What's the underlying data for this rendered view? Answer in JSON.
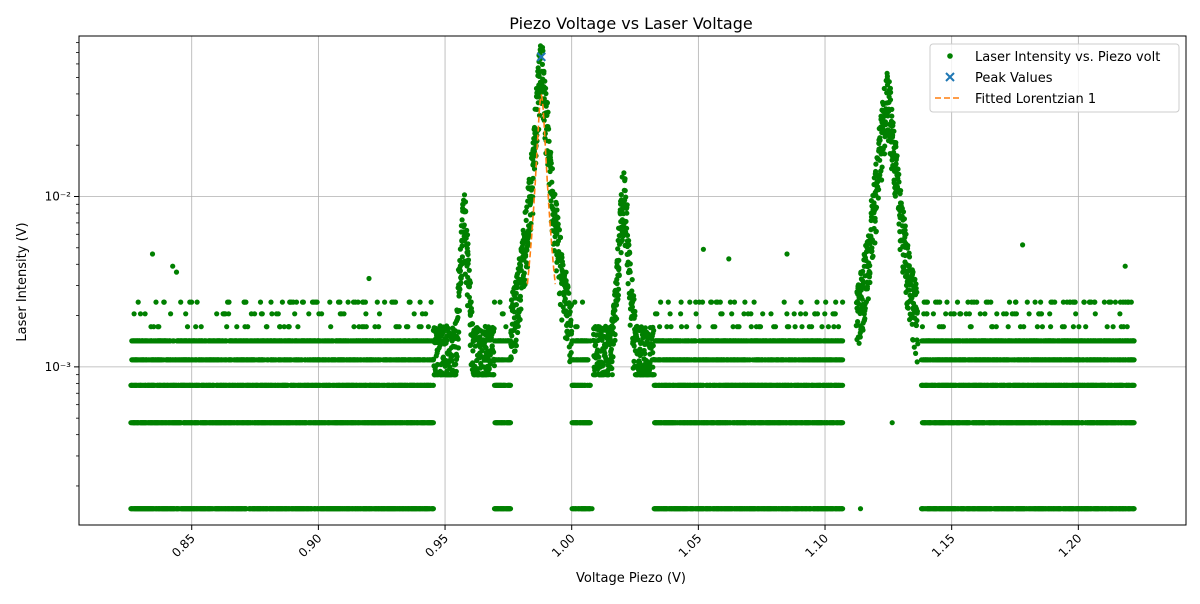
{
  "colors": {
    "data_points": "#008000",
    "peak_marker": "#1f77b4",
    "fit_line": "#ff7f0e",
    "grid": "#b0b0b0",
    "axes": "#000000"
  },
  "chart_data": {
    "type": "scatter",
    "title": "Piezo Voltage vs Laser Voltage",
    "xlabel": "Voltage Piezo (V)",
    "ylabel": "Laser Intensity (V)",
    "xlim": [
      0.8055,
      1.2425
    ],
    "ylim": [
      0.000118,
      0.0875
    ],
    "y_scale": "log",
    "grid": true,
    "legend_position": "top-right",
    "x_ticks": [
      0.85,
      0.9,
      0.95,
      1.0,
      1.05,
      1.1,
      1.15,
      1.2
    ],
    "x_tick_labels": [
      "0.85",
      "0.90",
      "0.95",
      "1.00",
      "1.05",
      "1.10",
      "1.15",
      "1.20"
    ],
    "y_ticks": [
      0.001,
      0.01
    ],
    "y_tick_labels": [
      "10⁻³",
      "10⁻²"
    ],
    "legend": [
      {
        "label": "Laser Intensity vs. Piezo volt",
        "marker": "dot",
        "color": "#008000"
      },
      {
        "label": "Peak Values",
        "marker": "x",
        "color": "#1f77b4"
      },
      {
        "label": "Fitted Lorentzian 1",
        "marker": "dashed-line",
        "color": "#ff7f0e"
      }
    ],
    "series": [
      {
        "name": "Laser Intensity vs. Piezo volt",
        "kind": "scatter",
        "x_range": [
          0.826,
          1.222
        ],
        "quantized_levels": [
          0.000147,
          0.00047,
          0.00078,
          0.0011,
          0.00142,
          0.00172,
          0.00205,
          0.0024,
          0.0027,
          0.003
        ],
        "peaks": [
          {
            "x": 0.9575,
            "y": 0.0072
          },
          {
            "x": 0.988,
            "y": 0.055
          },
          {
            "x": 1.0205,
            "y": 0.0102
          },
          {
            "x": 1.1245,
            "y": 0.037
          }
        ],
        "outliers": [
          {
            "x": 0.8345,
            "y": 0.0046
          },
          {
            "x": 0.8425,
            "y": 0.0039
          },
          {
            "x": 0.844,
            "y": 0.0036
          },
          {
            "x": 0.92,
            "y": 0.0033
          },
          {
            "x": 1.052,
            "y": 0.0049
          },
          {
            "x": 1.062,
            "y": 0.0043
          },
          {
            "x": 1.085,
            "y": 0.0046
          },
          {
            "x": 1.178,
            "y": 0.0052
          },
          {
            "x": 1.2185,
            "y": 0.0039
          },
          {
            "x": 1.008,
            "y": 0.000147
          },
          {
            "x": 1.114,
            "y": 0.000147
          },
          {
            "x": 1.1265,
            "y": 0.00047
          }
        ]
      },
      {
        "name": "Peak Values",
        "kind": "marker-x",
        "points": [
          {
            "x": 0.988,
            "y": 0.066
          }
        ]
      },
      {
        "name": "Fitted Lorentzian 1",
        "kind": "dashed-line",
        "center": 0.988,
        "amplitude": 0.0392,
        "half_width": 0.0016,
        "x_range": [
          0.9825,
          0.9935
        ]
      }
    ]
  }
}
